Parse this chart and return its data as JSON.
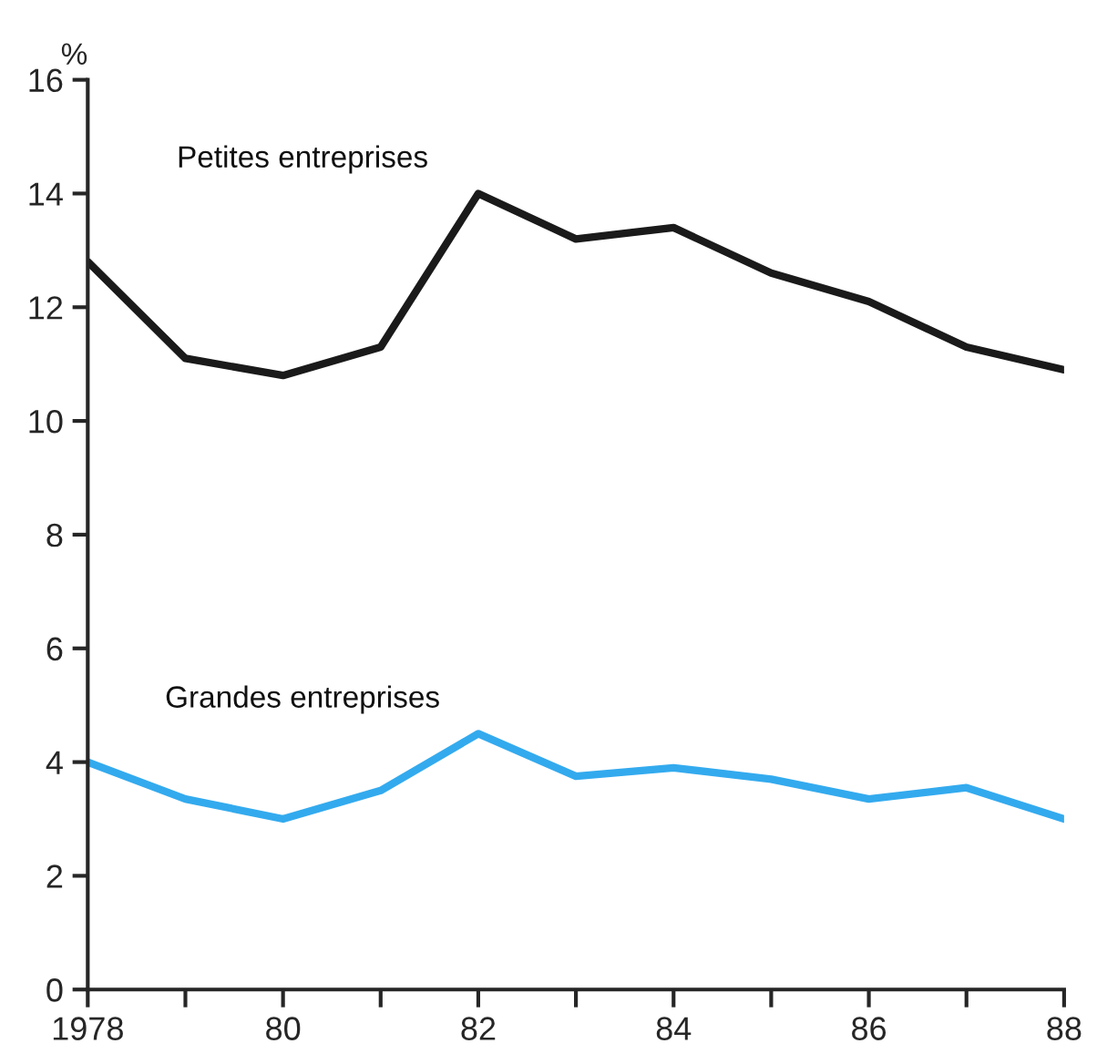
{
  "chart_data": {
    "type": "line",
    "ylabel": "%",
    "x": [
      1978,
      1979,
      1980,
      1981,
      1982,
      1983,
      1984,
      1985,
      1986,
      1987,
      1988
    ],
    "series": [
      {
        "name": "Petites entreprises",
        "color": "#1a1a1a",
        "values": [
          12.8,
          11.1,
          10.8,
          11.3,
          14.0,
          13.2,
          13.4,
          12.6,
          12.1,
          11.3,
          10.9
        ]
      },
      {
        "name": "Grandes entreprises",
        "color": "#33aaee",
        "values": [
          4.0,
          3.35,
          3.0,
          3.5,
          4.5,
          3.75,
          3.9,
          3.7,
          3.35,
          3.55,
          3.0
        ]
      }
    ],
    "xlim": [
      1978,
      1988
    ],
    "xticks": [
      1978,
      {
        "value": 1979,
        "label": null
      },
      {
        "value": 1980,
        "label": "80"
      },
      {
        "value": 1981,
        "label": null
      },
      {
        "value": 1982,
        "label": "82"
      },
      {
        "value": 1983,
        "label": null
      },
      {
        "value": 1984,
        "label": "84"
      },
      {
        "value": 1985,
        "label": null
      },
      {
        "value": 1986,
        "label": "86"
      },
      {
        "value": 1987,
        "label": null
      },
      {
        "value": 1988,
        "label": "88"
      }
    ],
    "ylim": [
      0,
      16
    ],
    "yticks": [
      0,
      2,
      4,
      6,
      8,
      10,
      12,
      14,
      16
    ],
    "grid": false,
    "legend": false,
    "marker": "none",
    "line_style": "solid"
  }
}
